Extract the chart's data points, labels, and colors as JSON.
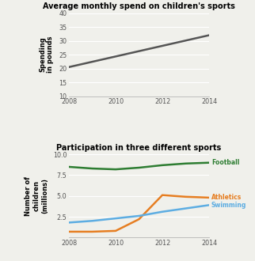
{
  "chart1": {
    "title": "Average monthly spend on children's sports",
    "ylabel": "Spending\nin pounds",
    "x": [
      2008,
      2014
    ],
    "y": [
      20.5,
      32.0
    ],
    "ylim": [
      10,
      40
    ],
    "yticks": [
      10,
      15,
      20,
      25,
      30,
      35,
      40
    ],
    "xticks": [
      2008,
      2010,
      2012,
      2014
    ],
    "line_color": "#555555",
    "line_width": 1.8
  },
  "chart2": {
    "title": "Participation in three different sports",
    "ylabel": "Number of\nchildren\n(millions)",
    "xticks": [
      2008,
      2010,
      2012,
      2014
    ],
    "ylim": [
      0,
      10
    ],
    "yticks": [
      2.5,
      5.0,
      7.5,
      10.0
    ],
    "football": {
      "x": [
        2008,
        2009,
        2010,
        2011,
        2012,
        2013,
        2014
      ],
      "y": [
        8.5,
        8.3,
        8.2,
        8.4,
        8.7,
        8.9,
        9.0
      ],
      "color": "#2e7d32",
      "label": "Football"
    },
    "athletics": {
      "x": [
        2008,
        2009,
        2010,
        2011,
        2012,
        2013,
        2014
      ],
      "y": [
        0.7,
        0.7,
        0.8,
        2.2,
        5.1,
        4.9,
        4.8
      ],
      "color": "#e67e22",
      "label": "Athletics"
    },
    "swimming": {
      "x": [
        2008,
        2009,
        2010,
        2011,
        2012,
        2013,
        2014
      ],
      "y": [
        1.8,
        2.0,
        2.3,
        2.6,
        3.1,
        3.5,
        3.9
      ],
      "color": "#5dade2",
      "label": "Swimming"
    }
  },
  "background_color": "#f0f0eb",
  "title_fontsize": 7.0,
  "label_fontsize": 6.0,
  "tick_fontsize": 5.8
}
